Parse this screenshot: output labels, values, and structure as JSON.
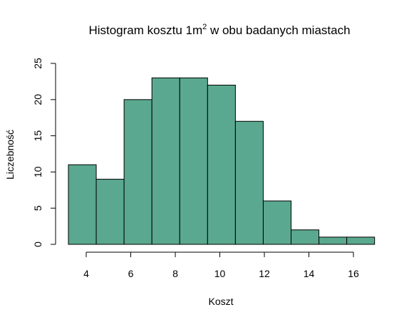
{
  "chart_data": {
    "type": "bar",
    "title_main": "Histogram kosztu 1m",
    "title_sup": "2",
    "title_rest": " w obu badanych miastach",
    "xlabel": "Koszt",
    "ylabel": "Liczebność",
    "bin_edges": [
      3.2,
      4.45,
      5.7,
      6.95,
      8.2,
      9.45,
      10.7,
      11.95,
      13.2,
      14.45,
      15.7,
      16.95
    ],
    "counts": [
      11,
      9,
      20,
      23,
      23,
      22,
      17,
      6,
      2,
      1,
      1
    ],
    "xticks": [
      4,
      6,
      8,
      10,
      12,
      14,
      16
    ],
    "yticks": [
      0,
      5,
      10,
      15,
      20,
      25
    ],
    "ylim": [
      0,
      25
    ],
    "bar_color": "#5aa88f",
    "grid": false
  }
}
